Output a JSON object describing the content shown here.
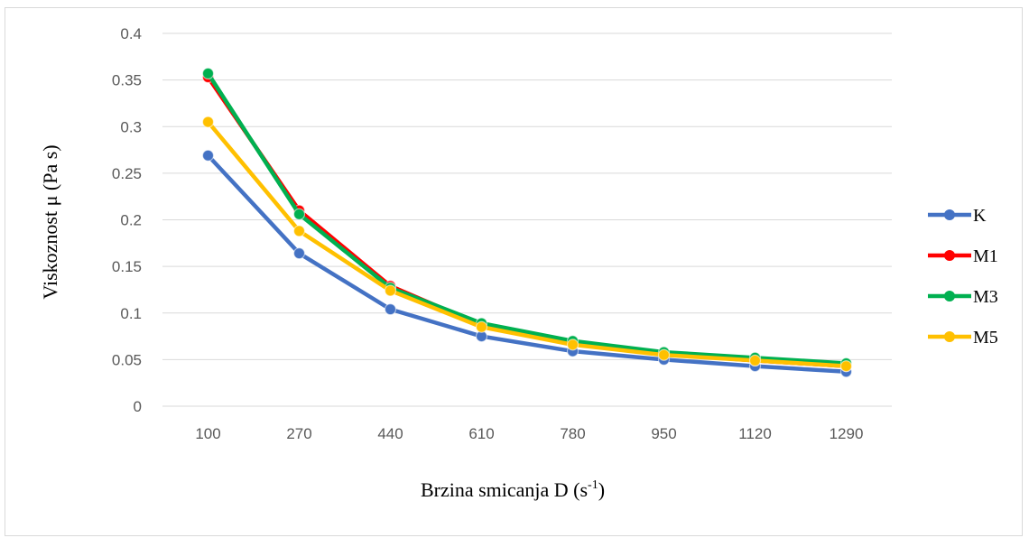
{
  "chart_data": {
    "type": "line",
    "x": [
      100,
      270,
      440,
      610,
      780,
      950,
      1120,
      1290
    ],
    "xlabel": "Brzina smicanja D (s",
    "xlabel_sup": "-1",
    "xlabel_end": ")",
    "ylabel": "Viskoznost  μ (Pa s)",
    "ylim": [
      0,
      0.4
    ],
    "yticks": [
      "0",
      "0.05",
      "0.1",
      "0.15",
      "0.2",
      "0.25",
      "0.3",
      "0.35",
      "0.4"
    ],
    "ytick_values": [
      0,
      0.05,
      0.1,
      0.15,
      0.2,
      0.25,
      0.3,
      0.35,
      0.4
    ],
    "grid": true,
    "legend_position": "right",
    "series": [
      {
        "name": "K",
        "color": "#4472c4",
        "values": [
          0.269,
          0.164,
          0.104,
          0.075,
          0.059,
          0.05,
          0.043,
          0.037
        ]
      },
      {
        "name": "M1",
        "color": "#ff0000",
        "values": [
          0.353,
          0.21,
          0.129,
          0.087,
          0.068,
          0.056,
          0.049,
          0.043
        ]
      },
      {
        "name": "M3",
        "color": "#00b050",
        "values": [
          0.357,
          0.206,
          0.127,
          0.089,
          0.07,
          0.058,
          0.052,
          0.046
        ]
      },
      {
        "name": "M5",
        "color": "#ffc000",
        "values": [
          0.305,
          0.188,
          0.124,
          0.085,
          0.066,
          0.055,
          0.049,
          0.043
        ]
      }
    ]
  }
}
